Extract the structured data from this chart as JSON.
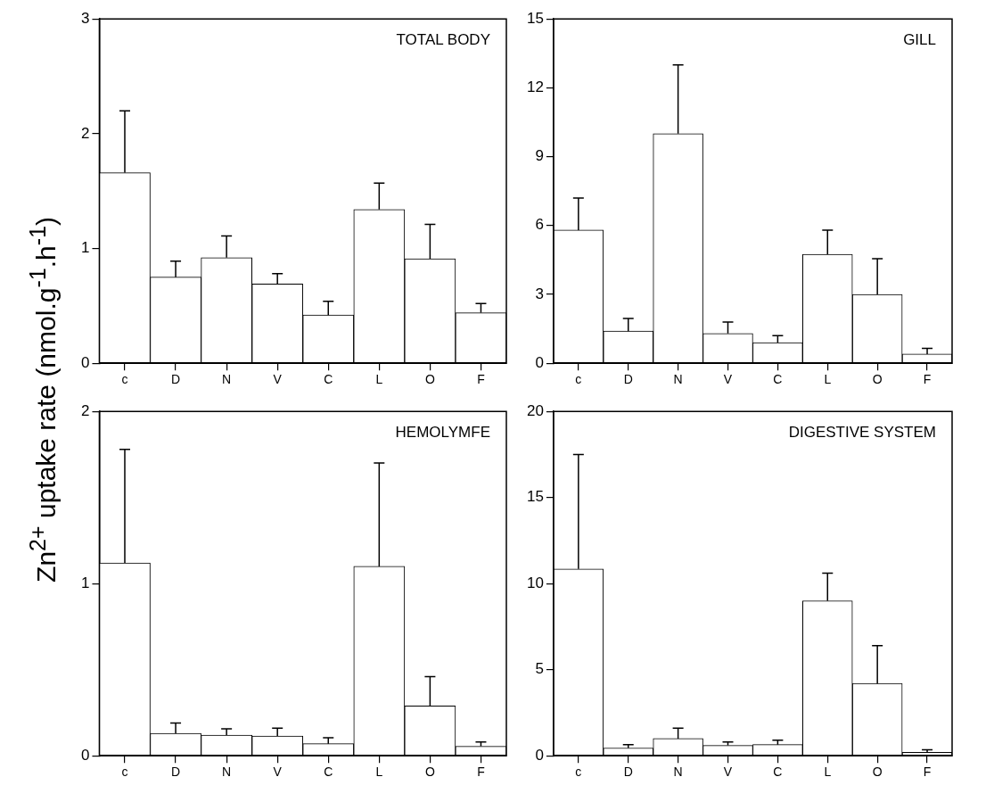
{
  "chart_data": [
    {
      "type": "bar",
      "title": "TOTAL BODY",
      "ylabel": "Zn$^{2+}$ uptake rate (nmol.g$^{-1}$.h$^{-1}$)",
      "categories": [
        "c",
        "D",
        "N",
        "V",
        "C",
        "L",
        "O",
        "F"
      ],
      "values": [
        1.66,
        0.75,
        0.92,
        0.69,
        0.42,
        1.34,
        0.91,
        0.44
      ],
      "errors": [
        [
          1.66,
          2.2
        ],
        [
          0.75,
          0.89
        ],
        [
          0.92,
          1.11
        ],
        [
          0.69,
          0.78
        ],
        [
          0.42,
          0.54
        ],
        [
          1.34,
          1.57
        ],
        [
          0.91,
          1.21
        ],
        [
          0.44,
          0.52
        ]
      ],
      "color": "#ffffff",
      "ylim": [
        0,
        3
      ],
      "yticks": [
        0,
        1,
        2,
        3
      ],
      "grid": false,
      "legend": false
    },
    {
      "type": "bar",
      "title": "GILL",
      "categories": [
        "c",
        "D",
        "N",
        "V",
        "C",
        "L",
        "O",
        "F"
      ],
      "values": [
        5.8,
        1.4,
        10,
        1.3,
        0.9,
        4.75,
        3.0,
        0.4
      ],
      "errors": [
        [
          5.8,
          7.2
        ],
        [
          1.4,
          1.95
        ],
        [
          10,
          13
        ],
        [
          1.3,
          1.8
        ],
        [
          0.9,
          1.2
        ],
        [
          4.75,
          5.8
        ],
        [
          3.0,
          4.55
        ],
        [
          0.4,
          0.65
        ]
      ],
      "color": "#ffffff",
      "ylim": [
        0,
        15
      ],
      "yticks": [
        0,
        3,
        6,
        9,
        12,
        15
      ],
      "grid": false,
      "legend": false
    },
    {
      "type": "bar",
      "title": "HEMOLYMFE",
      "categories": [
        "c",
        "D",
        "N",
        "V",
        "C",
        "L",
        "O",
        "F"
      ],
      "values": [
        1.12,
        0.13,
        0.12,
        0.115,
        0.07,
        1.1,
        0.29,
        0.055
      ],
      "errors": [
        [
          1.12,
          1.78
        ],
        [
          0.13,
          0.19
        ],
        [
          0.12,
          0.157
        ],
        [
          0.115,
          0.16
        ],
        [
          0.07,
          0.105
        ],
        [
          1.1,
          1.7
        ],
        [
          0.29,
          0.46
        ],
        [
          0.055,
          0.08
        ]
      ],
      "color": "#ffffff",
      "ylim": [
        0,
        2
      ],
      "yticks": [
        0,
        1,
        2
      ],
      "grid": false,
      "legend": false
    },
    {
      "type": "bar",
      "title": "DIGESTIVE SYSTEM",
      "categories": [
        "c",
        "D",
        "N",
        "V",
        "C",
        "L",
        "O",
        "F"
      ],
      "values": [
        10.85,
        0.45,
        1.0,
        0.6,
        0.65,
        9.0,
        4.2,
        0.2
      ],
      "errors": [
        [
          10.85,
          17.5
        ],
        [
          0.45,
          0.65
        ],
        [
          1.0,
          1.6
        ],
        [
          0.6,
          0.8
        ],
        [
          0.65,
          0.9
        ],
        [
          9.0,
          10.6
        ],
        [
          4.2,
          6.4
        ],
        [
          0.2,
          0.35
        ]
      ],
      "color": "#ffffff",
      "ylim": [
        0,
        20
      ],
      "yticks": [
        0,
        5,
        10,
        15,
        20
      ],
      "grid": false,
      "legend": false
    }
  ]
}
